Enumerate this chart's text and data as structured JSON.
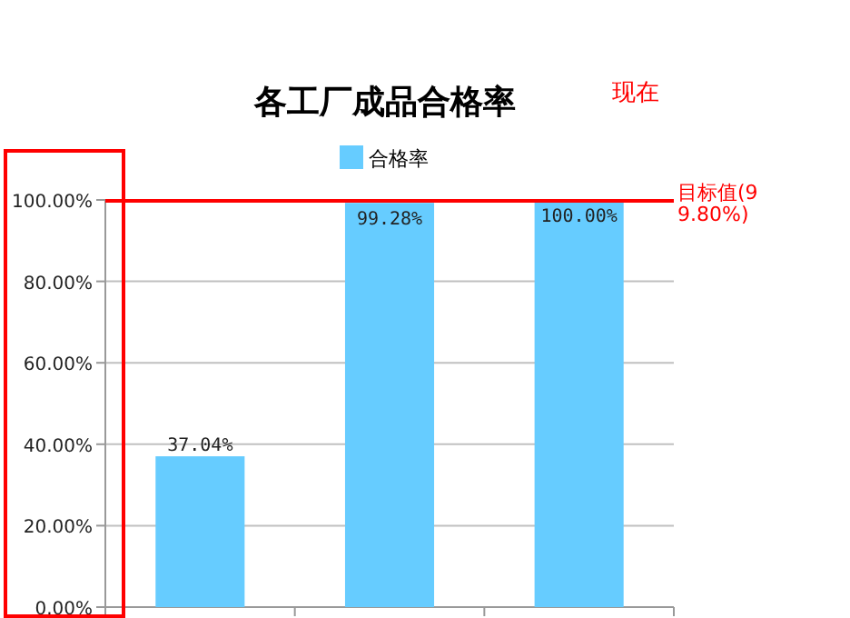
{
  "chart_data": {
    "type": "bar",
    "title": "各工厂成品合格率",
    "annotations": [
      "现在"
    ],
    "categories": [
      null,
      null,
      null
    ],
    "series": [
      {
        "name": "合格率",
        "color": "#66ccff",
        "values": [
          37.04,
          99.28,
          100.0
        ],
        "value_labels": [
          "37.04%",
          "99.28%",
          "100.00%"
        ]
      }
    ],
    "ylim": [
      0,
      100
    ],
    "yticks": [
      {
        "value": 0,
        "label": "0.00%"
      },
      {
        "value": 20,
        "label": "20.00%"
      },
      {
        "value": 40,
        "label": "40.00%"
      },
      {
        "value": 60,
        "label": "60.00%"
      },
      {
        "value": 80,
        "label": "80.00%"
      },
      {
        "value": 100,
        "label": "100.00%"
      }
    ],
    "ref_lines": [
      {
        "axis": "y",
        "value": 99.8,
        "label": "目标值(99.80%)",
        "color": "#ff0000"
      }
    ],
    "grid": "y",
    "legend": "top"
  }
}
